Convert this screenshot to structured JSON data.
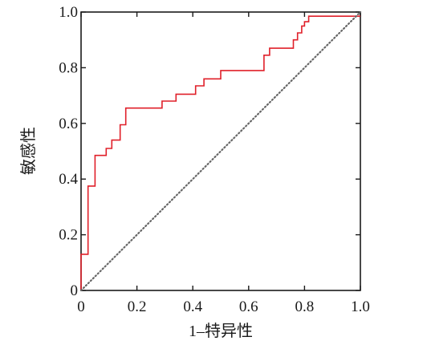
{
  "chart_data": {
    "type": "line",
    "title": "",
    "xlabel": "1–特异性",
    "ylabel": "敏感性",
    "xlim": [
      0,
      1.0
    ],
    "ylim": [
      0,
      1.0
    ],
    "x_ticks": [
      0,
      0.2,
      0.4,
      0.6,
      0.8,
      1.0
    ],
    "x_tick_labels": [
      "0",
      "0.2",
      "0.4",
      "0.6",
      "0.8",
      "1.0"
    ],
    "y_ticks": [
      0,
      0.2,
      0.4,
      0.6,
      0.8,
      1.0
    ],
    "y_tick_labels": [
      "0",
      "0.2",
      "0.4",
      "0.6",
      "0.8",
      "1.0"
    ],
    "grid": false,
    "legend": "none",
    "series": [
      {
        "style": "step",
        "color": "#e0202a",
        "x": [
          0,
          0,
          0.025,
          0.025,
          0.05,
          0.05,
          0.09,
          0.09,
          0.11,
          0.11,
          0.14,
          0.14,
          0.16,
          0.16,
          0.29,
          0.29,
          0.34,
          0.34,
          0.41,
          0.41,
          0.44,
          0.44,
          0.5,
          0.5,
          0.655,
          0.655,
          0.675,
          0.675,
          0.76,
          0.76,
          0.775,
          0.775,
          0.79,
          0.79,
          0.8,
          0.8,
          0.815,
          0.815,
          1.0
        ],
        "y": [
          0,
          0.13,
          0.13,
          0.375,
          0.375,
          0.485,
          0.485,
          0.51,
          0.51,
          0.54,
          0.54,
          0.595,
          0.595,
          0.655,
          0.655,
          0.68,
          0.68,
          0.705,
          0.705,
          0.735,
          0.735,
          0.76,
          0.76,
          0.79,
          0.79,
          0.845,
          0.845,
          0.87,
          0.87,
          0.9,
          0.9,
          0.925,
          0.925,
          0.95,
          0.95,
          0.965,
          0.965,
          0.985,
          0.985
        ]
      },
      {
        "style": "dotted-diagonal",
        "color": "#666666",
        "x": [
          0,
          1.0
        ],
        "y": [
          0,
          1.0
        ]
      }
    ]
  }
}
